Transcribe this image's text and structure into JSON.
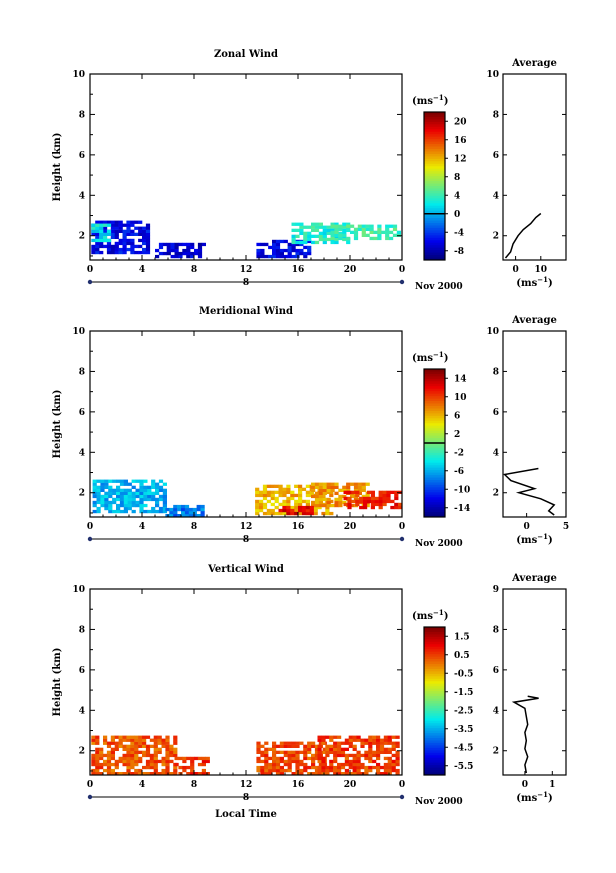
{
  "chart_data": [
    {
      "type": "heatmap",
      "title": "Zonal Wind",
      "xlabel": "",
      "ylabel": "Height (km)",
      "xlim": [
        0,
        24
      ],
      "ylim": [
        0.8,
        10
      ],
      "x_ticks": [
        "0",
        "4",
        "8",
        "12",
        "16",
        "20",
        "0"
      ],
      "y_ticks": [
        "2",
        "4",
        "6",
        "8",
        "10"
      ],
      "day_marker": "8",
      "date_label": "Nov 2000",
      "colorbar": {
        "unit_label": "(ms⁻¹)",
        "ticks": [
          "20",
          "16",
          "12",
          "8",
          "4",
          "0",
          "-4",
          "-8"
        ],
        "range": [
          -10,
          22
        ],
        "zero_value": 0,
        "colormap": "jet"
      },
      "regions": [
        {
          "t0": 0.1,
          "t1": 4.3,
          "h0": 1.1,
          "h1": 2.6,
          "value": -6
        },
        {
          "t0": 0.1,
          "t1": 1.5,
          "h0": 1.7,
          "h1": 2.5,
          "value": 2
        },
        {
          "t0": 5.0,
          "t1": 8.8,
          "h0": 0.9,
          "h1": 1.5,
          "value": -7
        },
        {
          "t0": 12.8,
          "t1": 16.8,
          "h0": 0.9,
          "h1": 1.7,
          "value": -6
        },
        {
          "t0": 15.5,
          "t1": 19.8,
          "h0": 1.6,
          "h1": 2.6,
          "value": 3
        },
        {
          "t0": 18.5,
          "t1": 23.8,
          "h0": 1.8,
          "h1": 2.5,
          "value": 4
        }
      ],
      "average_profile": {
        "title": "Average",
        "xlabel": "(ms⁻¹)",
        "xlim": [
          -5,
          20
        ],
        "x_ticks": [
          "0",
          "10"
        ],
        "y_ticks": [
          "2",
          "4",
          "6",
          "8",
          "10"
        ],
        "heights": [
          0.9,
          1.2,
          1.6,
          2.0,
          2.3,
          2.6,
          2.9,
          3.1
        ],
        "values": [
          -4,
          -2,
          -1,
          1,
          3,
          6,
          8,
          10
        ]
      }
    },
    {
      "type": "heatmap",
      "title": "Meridional Wind",
      "xlabel": "",
      "ylabel": "Height (km)",
      "xlim": [
        0,
        24
      ],
      "ylim": [
        0.8,
        10
      ],
      "x_ticks": [
        "0",
        "4",
        "8",
        "12",
        "16",
        "20",
        "0"
      ],
      "y_ticks": [
        "2",
        "4",
        "6",
        "8",
        "10"
      ],
      "day_marker": "8",
      "date_label": "Nov 2000",
      "colorbar": {
        "unit_label": "(ms⁻¹)",
        "ticks": [
          "14",
          "10",
          "6",
          "2",
          "-2",
          "-6",
          "-10",
          "-14"
        ],
        "range": [
          -16,
          16
        ],
        "zero_value": 0,
        "colormap": "jet"
      },
      "regions": [
        {
          "t0": 0.2,
          "t1": 5.8,
          "h0": 1.0,
          "h1": 2.6,
          "value": -6
        },
        {
          "t0": 5.8,
          "t1": 8.7,
          "h0": 0.8,
          "h1": 1.4,
          "value": -8
        },
        {
          "t0": 12.7,
          "t1": 18.5,
          "h0": 0.9,
          "h1": 2.3,
          "value": 6
        },
        {
          "t0": 17.0,
          "t1": 21.5,
          "h0": 1.3,
          "h1": 2.4,
          "value": 7
        },
        {
          "t0": 19.5,
          "t1": 23.8,
          "h0": 1.2,
          "h1": 2.0,
          "value": 11
        },
        {
          "t0": 14.5,
          "t1": 17.0,
          "h0": 0.9,
          "h1": 1.3,
          "value": 12
        }
      ],
      "average_profile": {
        "title": "Average",
        "xlabel": "(ms⁻¹)",
        "xlim": [
          -3,
          5
        ],
        "x_ticks": [
          "0",
          "5"
        ],
        "y_ticks": [
          "2",
          "4",
          "6",
          "8",
          "10"
        ],
        "heights": [
          0.9,
          1.1,
          1.4,
          1.7,
          2.0,
          2.2,
          2.6,
          2.9,
          3.2
        ],
        "values": [
          3.5,
          2.8,
          3.5,
          1.8,
          -1.0,
          1.0,
          -2.0,
          -2.8,
          1.5
        ]
      }
    },
    {
      "type": "heatmap",
      "title": "Vertical Wind",
      "xlabel": "Local Time",
      "ylabel": "Height (km)",
      "xlim": [
        0,
        24
      ],
      "ylim": [
        0.8,
        10
      ],
      "x_ticks": [
        "0",
        "4",
        "8",
        "12",
        "16",
        "20",
        "0"
      ],
      "y_ticks": [
        "2",
        "4",
        "6",
        "8",
        "10"
      ],
      "day_marker": "8",
      "date_label": "Nov 2000",
      "colorbar": {
        "unit_label": "(ms⁻¹)",
        "ticks": [
          "1.5",
          "0.5",
          "-0.5",
          "-1.5",
          "-2.5",
          "-3.5",
          "-4.5",
          "-5.5"
        ],
        "range": [
          -6,
          2
        ],
        "zero_value": null,
        "colormap": "jet"
      },
      "regions": [
        {
          "t0": 0.1,
          "t1": 6.5,
          "h0": 0.8,
          "h1": 2.7,
          "value": 0.3
        },
        {
          "t0": 6.5,
          "t1": 9.0,
          "h0": 0.8,
          "h1": 1.6,
          "value": 0.6
        },
        {
          "t0": 12.8,
          "t1": 18.0,
          "h0": 0.8,
          "h1": 2.3,
          "value": 0.4
        },
        {
          "t0": 17.5,
          "t1": 23.8,
          "h0": 0.8,
          "h1": 2.6,
          "value": 0.5
        }
      ],
      "average_profile": {
        "title": "Average",
        "xlabel": "(ms⁻¹)",
        "xlim": [
          -0.8,
          1.5
        ],
        "x_ticks": [
          "0",
          "1"
        ],
        "y_ticks": [
          "2",
          "4",
          "6",
          "8",
          "9"
        ],
        "heights": [
          0.9,
          1.3,
          1.7,
          2.1,
          2.5,
          2.9,
          3.3,
          3.7,
          4.1,
          4.4,
          4.6,
          4.7
        ],
        "values": [
          0.05,
          0.0,
          0.1,
          0.0,
          0.05,
          0.0,
          0.1,
          0.05,
          0.0,
          -0.4,
          0.5,
          0.1
        ]
      }
    }
  ]
}
